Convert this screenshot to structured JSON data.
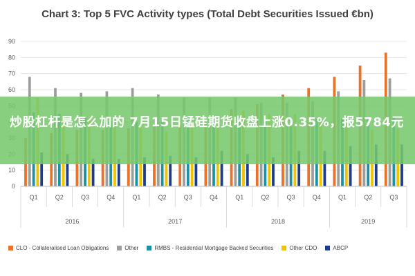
{
  "overlay": {
    "text": "炒股杠杆是怎么加的 7月15日锰硅期货收盘上涨0.35%，报5784元"
  },
  "chart_data": {
    "type": "bar",
    "title": "Chart 3: Top 5 FVC Activity types (Total Debt Securities Issued €bn)",
    "xlabel": "",
    "ylabel": "",
    "ylim": [
      0,
      90
    ],
    "yticks": [
      "0",
      "10",
      "20",
      "30",
      "40",
      "50",
      "60",
      "70",
      "80",
      "90"
    ],
    "grid": true,
    "legend_position": "bottom",
    "categories": [
      "Q1",
      "Q2",
      "Q3",
      "Q4",
      "Q1",
      "Q2",
      "Q3",
      "Q4",
      "Q1",
      "Q2",
      "Q3",
      "Q4",
      "Q1",
      "Q2",
      "Q3"
    ],
    "year_groups": [
      {
        "label": "2016",
        "count": 4
      },
      {
        "label": "2017",
        "count": 4
      },
      {
        "label": "2018",
        "count": 4
      },
      {
        "label": "2019",
        "count": 3
      }
    ],
    "series": [
      {
        "name": "CLO - Collateralised Loan Obligations",
        "color": "#e8732a",
        "values": [
          30,
          33,
          35,
          35,
          36,
          37,
          38,
          40,
          48,
          51,
          57,
          61,
          68,
          75,
          83
        ]
      },
      {
        "name": "Other",
        "color": "#9e9e9e",
        "values": [
          68,
          61,
          58,
          59,
          61,
          57,
          55,
          55,
          55,
          52,
          52,
          53,
          59,
          66,
          67
        ]
      },
      {
        "name": "RMBS - Residential Mortgage Backed Securities",
        "color": "#1f8fa3",
        "values": [
          46,
          45,
          43,
          41,
          40,
          41,
          43,
          42,
          42,
          42,
          42,
          42,
          42,
          42,
          43
        ]
      },
      {
        "name": "Other CDO",
        "color": "#f2c200",
        "values": [
          55,
          43,
          42,
          39,
          36,
          34,
          40,
          38,
          47,
          45,
          45,
          40,
          37,
          35,
          36
        ]
      },
      {
        "name": "ABCP",
        "color": "#1f3c88",
        "values": [
          21,
          20,
          17,
          17,
          18,
          19,
          18,
          22,
          20,
          18,
          22,
          22,
          25,
          26,
          26
        ]
      }
    ]
  }
}
